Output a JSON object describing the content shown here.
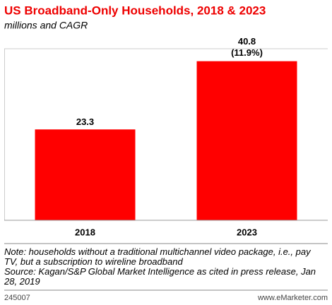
{
  "chart_data": {
    "type": "bar",
    "title": "US Broadband-Only Households, 2018 & 2023",
    "subtitle": "millions and CAGR",
    "categories": [
      "2018",
      "2023"
    ],
    "values": [
      23.3,
      40.8
    ],
    "cagr_label": "(11.9%)",
    "color": "#ff0000",
    "ylim": [
      0,
      44
    ],
    "grid": false,
    "note": "Note: households without a traditional multichannel video package, i.e., pay TV, but a subscription to wireline broadband",
    "source": "Source: Kagan/S&P Global Market Intelligence as cited in press release, Jan 28, 2019"
  },
  "footer": {
    "id": "245007",
    "site": "www.eMarketer.com"
  }
}
